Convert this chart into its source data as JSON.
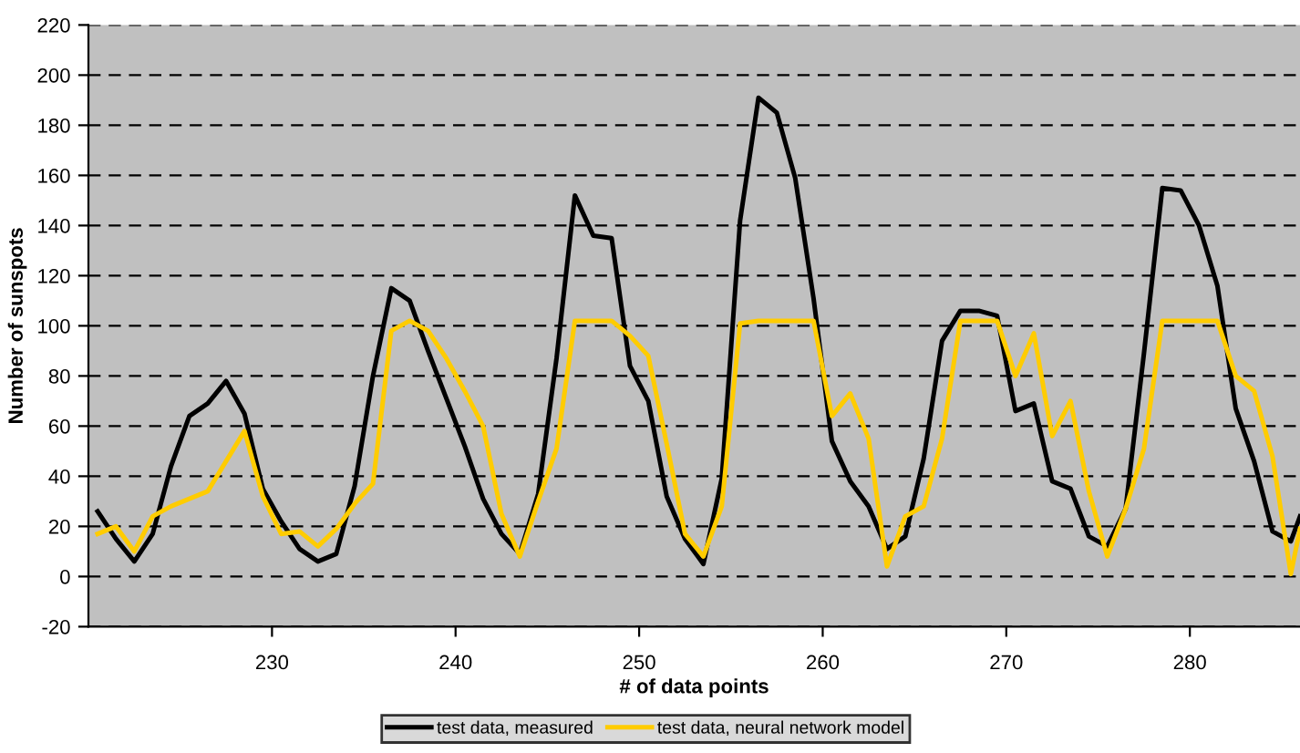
{
  "chart_data": {
    "type": "line",
    "xlabel": "# of data points",
    "ylabel": "Number of sunspots",
    "x": [
      220.5,
      221.5,
      222.5,
      223.5,
      224.5,
      225.5,
      226.5,
      227.5,
      228.5,
      229.5,
      230.5,
      231.5,
      232.5,
      233.5,
      234.5,
      235.5,
      236.5,
      237.5,
      238.5,
      239.5,
      240.5,
      241.5,
      242.5,
      243.5,
      244.5,
      245.5,
      246.5,
      247.5,
      248.5,
      249.5,
      250.5,
      251.5,
      252.5,
      253.5,
      254.5,
      255.5,
      256.5,
      257.5,
      258.5,
      259.5,
      260.5,
      261.5,
      262.5,
      263.5,
      264.5,
      265.5,
      266.5,
      267.5,
      268.5,
      269.5,
      270.5,
      271.5,
      272.5,
      273.5,
      274.5,
      275.5,
      276.5,
      277.5,
      278.5,
      279.5,
      280.5,
      281.5,
      282.5,
      283.5,
      284.5,
      285.5,
      286
    ],
    "series": [
      {
        "name": "test data, measured",
        "color": "#000000",
        "values": [
          26,
          15,
          6,
          17,
          44,
          64,
          69,
          78,
          65,
          35,
          22,
          11,
          6,
          9,
          36,
          80,
          115,
          110,
          90,
          71,
          52,
          31,
          17,
          9,
          33,
          87,
          152,
          136,
          135,
          84,
          70,
          32,
          15,
          5,
          39,
          142,
          191,
          185,
          159,
          111,
          54,
          38,
          28,
          11,
          16,
          47,
          94,
          106,
          106,
          104,
          66,
          69,
          38,
          35,
          16,
          12,
          27,
          89,
          155,
          154,
          140,
          116,
          67,
          46,
          18,
          14,
          24
        ]
      },
      {
        "name": "test data, neural network model",
        "color": "#ffcc00",
        "values": [
          17,
          20,
          10,
          24,
          28,
          31,
          34,
          46,
          58,
          32,
          17,
          18,
          12,
          19,
          29,
          37,
          98,
          102,
          98,
          87,
          74,
          60,
          25,
          8,
          30,
          51,
          102,
          102,
          102,
          96,
          88,
          53,
          17,
          8,
          28,
          101,
          102,
          102,
          102,
          102,
          64,
          73,
          55,
          4,
          24,
          28,
          55,
          102,
          102,
          102,
          80,
          97,
          56,
          70,
          34,
          8,
          27,
          51,
          102,
          102,
          102,
          102,
          80,
          74,
          48,
          1,
          19
        ]
      }
    ],
    "xlim": [
      220,
      286
    ],
    "xticks": [
      230,
      240,
      250,
      260,
      270,
      280
    ],
    "ylim": [
      -20,
      220
    ],
    "yticks": [
      -20,
      0,
      20,
      40,
      60,
      80,
      100,
      120,
      140,
      160,
      180,
      200,
      220
    ],
    "grid": "y",
    "legend": "bottom",
    "marker": "none",
    "line_style": "solid"
  }
}
